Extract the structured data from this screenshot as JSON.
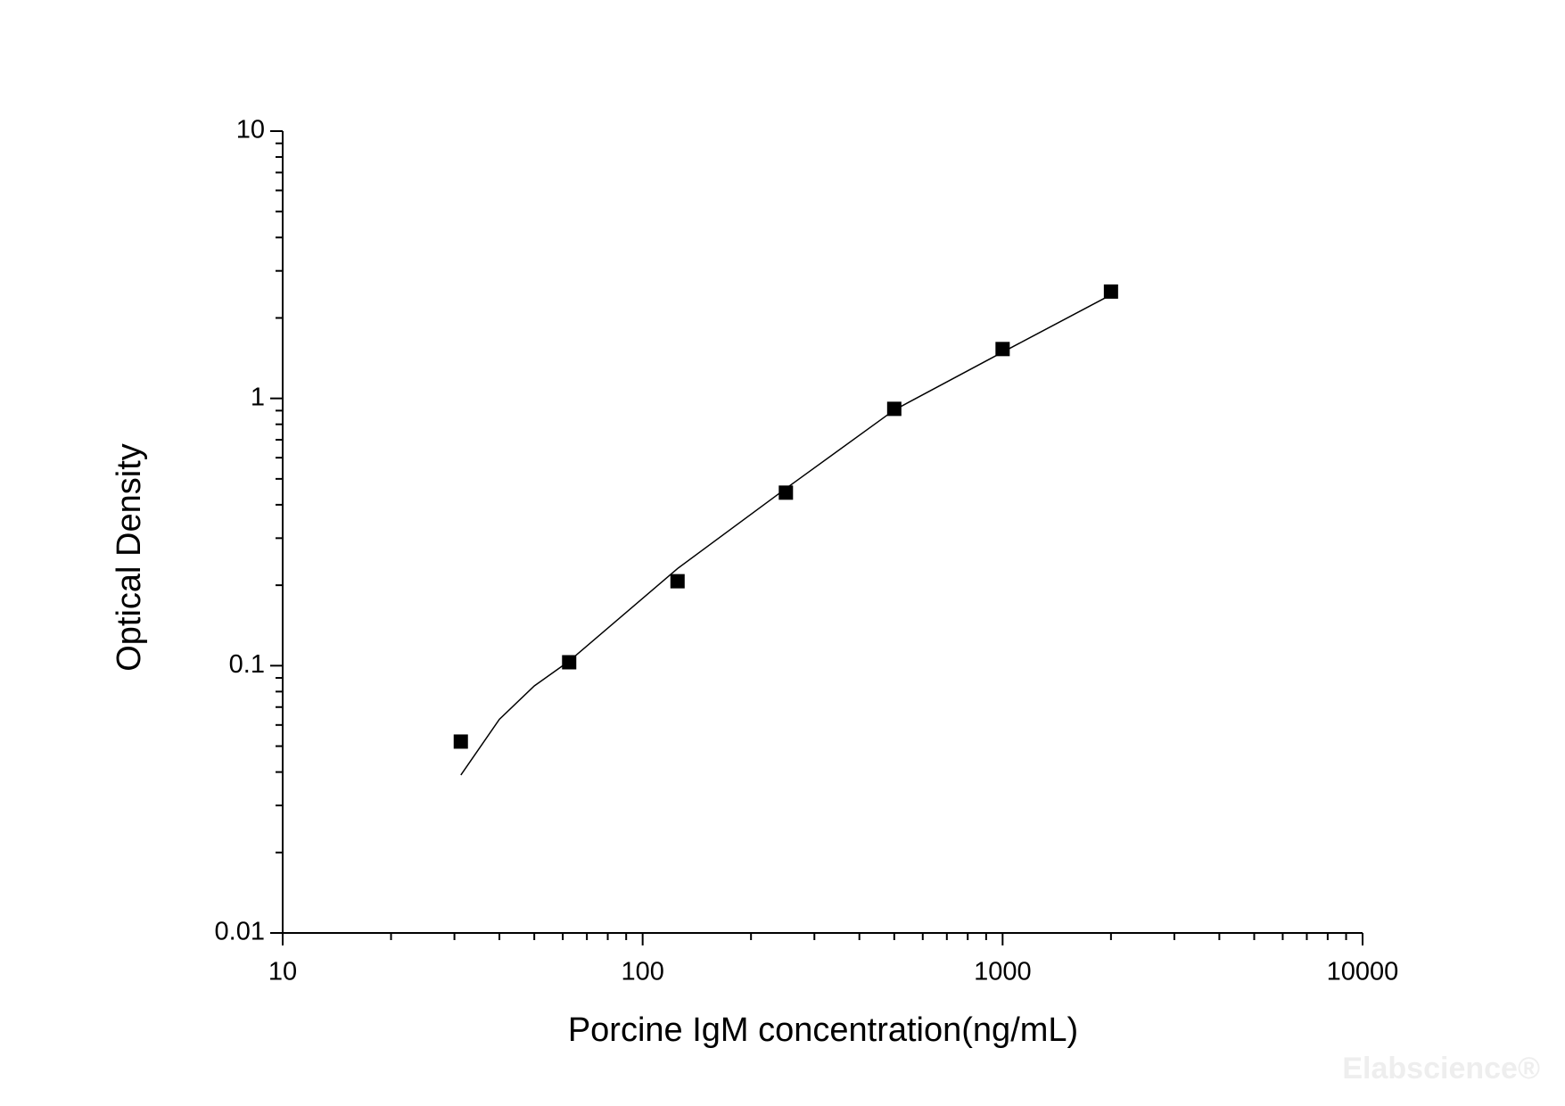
{
  "chart_data": {
    "type": "scatter",
    "x_label": "Porcine IgM concentration(ng/mL)",
    "y_label": "Optical Density",
    "watermark": "Elabscience®",
    "x_log": true,
    "y_log": true,
    "xlim": [
      10,
      10000
    ],
    "ylim": [
      0.01,
      10
    ],
    "xticks": [
      10,
      100,
      1000,
      10000
    ],
    "yticks": [
      0.01,
      0.1,
      1,
      10
    ],
    "xminorticks": [
      20,
      30,
      40,
      50,
      60,
      70,
      80,
      90,
      200,
      300,
      400,
      500,
      600,
      700,
      800,
      900,
      2000,
      3000,
      4000,
      5000,
      6000,
      7000,
      8000,
      9000
    ],
    "yminorticks": [
      0.02,
      0.03,
      0.04,
      0.05,
      0.06,
      0.07,
      0.08,
      0.09,
      0.2,
      0.3,
      0.4,
      0.5,
      0.6,
      0.7,
      0.8,
      0.9,
      2,
      3,
      4,
      5,
      6,
      7,
      8,
      9
    ],
    "series": [
      {
        "kind": "points",
        "color": "#000000",
        "x": [
          31.25,
          62.5,
          125,
          250,
          500,
          1000,
          2000
        ],
        "values": [
          0.052,
          0.103,
          0.207,
          0.444,
          0.914,
          1.53,
          2.51
        ]
      },
      {
        "kind": "curve",
        "color": "#000000",
        "x": [
          31.25,
          40,
          50,
          62.5,
          125,
          250,
          500,
          1000,
          2000
        ],
        "values": [
          0.039,
          0.063,
          0.084,
          0.104,
          0.231,
          0.46,
          0.905,
          1.49,
          2.44
        ]
      }
    ]
  }
}
